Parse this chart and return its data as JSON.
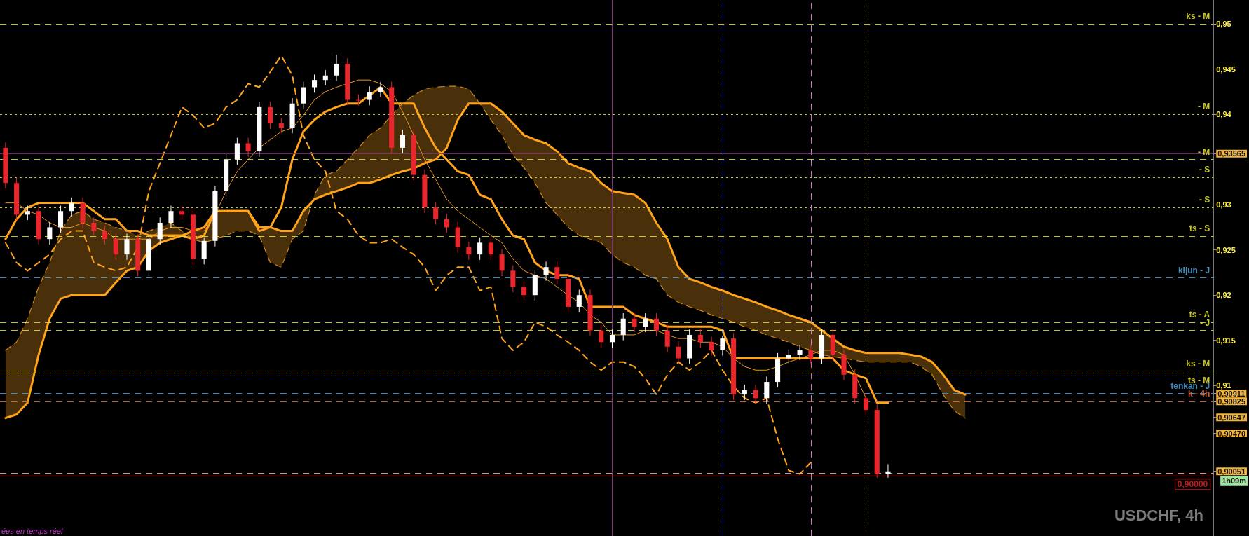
{
  "chart_data": {
    "type": "candlestick",
    "title": "USDCHF, 4h",
    "annotations": [
      "ées en temps réel",
      "1h09m"
    ],
    "categories": [
      null,
      null,
      null,
      null,
      null,
      null,
      null,
      null,
      null,
      null,
      null,
      null,
      null,
      null,
      null,
      null,
      null,
      null,
      null,
      null,
      null,
      null,
      null,
      null,
      null,
      null,
      null,
      null,
      null,
      null,
      null,
      null,
      null,
      null,
      null,
      null,
      null,
      null,
      null,
      null,
      null,
      null,
      null,
      null,
      null,
      null,
      null,
      null,
      null,
      null,
      null,
      null,
      null,
      null,
      null,
      null,
      null,
      null,
      null,
      null,
      null,
      null,
      null,
      null,
      null,
      null,
      null,
      null,
      null,
      null,
      null,
      null,
      null,
      null,
      null,
      null,
      null,
      null,
      null,
      null,
      null,
      null,
      null,
      null,
      null,
      null,
      null,
      null,
      null,
      null,
      null,
      null,
      null,
      null,
      null,
      null,
      null,
      null,
      null,
      null,
      null,
      null,
      null,
      null,
      null,
      null,
      null,
      null,
      null,
      null
    ],
    "ylim": [
      0.89335,
      0.95265
    ],
    "yticks": [
      {
        "value": 0.95,
        "label": "0,95"
      },
      {
        "value": 0.945,
        "label": "0,945"
      },
      {
        "value": 0.94,
        "label": "0,94"
      },
      {
        "value": 0.93565,
        "label": "0,93565"
      },
      {
        "value": 0.93,
        "label": "0,93"
      },
      {
        "value": 0.925,
        "label": "0,925"
      },
      {
        "value": 0.92,
        "label": "0,92"
      },
      {
        "value": 0.915,
        "label": "0,915"
      },
      {
        "value": 0.91,
        "label": "0,91"
      },
      {
        "value": 0.90911,
        "label": "0,90911"
      },
      {
        "value": 0.90825,
        "label": "0,90825"
      },
      {
        "value": 0.90647,
        "label": "0,90647"
      },
      {
        "value": 0.9047,
        "label": "0,90470"
      },
      {
        "value": 0.90051,
        "label": "0,90051"
      }
    ],
    "tick_labels": "y",
    "series": [
      {
        "ohlc": [
          [
            0.9363,
            0.9369,
            0.9318,
            0.9324
          ],
          [
            0.9324,
            0.933,
            0.9283,
            0.9289
          ],
          [
            0.9289,
            0.9299,
            0.9283,
            0.9293
          ],
          [
            0.9293,
            0.9299,
            0.9256,
            0.9262
          ],
          [
            0.9262,
            0.9281,
            0.9256,
            0.9275
          ],
          [
            0.9275,
            0.9299,
            0.9269,
            0.9293
          ],
          [
            0.9293,
            0.9308,
            0.9287,
            0.9302
          ],
          [
            0.9302,
            0.9308,
            0.9274,
            0.928
          ],
          [
            0.928,
            0.9286,
            0.9265,
            0.9271
          ],
          [
            0.9271,
            0.9277,
            0.9256,
            0.9262
          ],
          [
            0.9262,
            0.9268,
            0.9239,
            0.9245
          ],
          [
            0.9245,
            0.9268,
            0.9239,
            0.9262
          ],
          [
            0.9262,
            0.9268,
            0.9221,
            0.9227
          ],
          [
            0.9227,
            0.9268,
            0.9221,
            0.9262
          ],
          [
            0.9262,
            0.9286,
            0.9256,
            0.928
          ],
          [
            0.928,
            0.9299,
            0.9274,
            0.9293
          ],
          [
            0.9293,
            0.9299,
            0.9283,
            0.9289
          ],
          [
            0.9289,
            0.9295,
            0.9234,
            0.924
          ],
          [
            0.924,
            0.9264,
            0.9234,
            0.926
          ],
          [
            0.926,
            0.9321,
            0.9254,
            0.9315
          ],
          [
            0.9315,
            0.9356,
            0.9309,
            0.935
          ],
          [
            0.935,
            0.9374,
            0.9344,
            0.9368
          ],
          [
            0.9368,
            0.9374,
            0.9353,
            0.9359
          ],
          [
            0.9359,
            0.9414,
            0.9353,
            0.9408
          ],
          [
            0.9408,
            0.9414,
            0.9384,
            0.939
          ],
          [
            0.939,
            0.9396,
            0.9379,
            0.9385
          ],
          [
            0.9385,
            0.9418,
            0.9379,
            0.9412
          ],
          [
            0.9412,
            0.9436,
            0.9406,
            0.943
          ],
          [
            0.943,
            0.9444,
            0.9424,
            0.9438
          ],
          [
            0.9438,
            0.9449,
            0.9432,
            0.9443
          ],
          [
            0.9443,
            0.9466,
            0.9437,
            0.9456
          ],
          [
            0.9456,
            0.9462,
            0.941,
            0.9416
          ],
          [
            0.9416,
            0.9422,
            0.941,
            0.9416
          ],
          [
            0.9416,
            0.9431,
            0.941,
            0.9425
          ],
          [
            0.9425,
            0.9436,
            0.9419,
            0.943
          ],
          [
            0.943,
            0.9436,
            0.9357,
            0.9363
          ],
          [
            0.9363,
            0.9383,
            0.9357,
            0.9377
          ],
          [
            0.9377,
            0.9383,
            0.9327,
            0.9333
          ],
          [
            0.9333,
            0.9339,
            0.9291,
            0.9297
          ],
          [
            0.9297,
            0.9303,
            0.9278,
            0.9284
          ],
          [
            0.9284,
            0.929,
            0.9269,
            0.9275
          ],
          [
            0.9275,
            0.9281,
            0.9247,
            0.9253
          ],
          [
            0.9253,
            0.9259,
            0.9239,
            0.9245
          ],
          [
            0.9245,
            0.9264,
            0.9239,
            0.9258
          ],
          [
            0.9258,
            0.9264,
            0.9239,
            0.9245
          ],
          [
            0.9245,
            0.9251,
            0.9221,
            0.9227
          ],
          [
            0.9227,
            0.9233,
            0.9203,
            0.9209
          ],
          [
            0.9209,
            0.9215,
            0.9194,
            0.92
          ],
          [
            0.92,
            0.9228,
            0.9194,
            0.9222
          ],
          [
            0.9222,
            0.9237,
            0.9216,
            0.9231
          ],
          [
            0.9231,
            0.9237,
            0.9212,
            0.9218
          ],
          [
            0.9218,
            0.9224,
            0.9181,
            0.9187
          ],
          [
            0.9187,
            0.9206,
            0.9181,
            0.92
          ],
          [
            0.92,
            0.9206,
            0.9155,
            0.9161
          ],
          [
            0.9161,
            0.9167,
            0.9142,
            0.9148
          ],
          [
            0.9148,
            0.9162,
            0.9142,
            0.9156
          ],
          [
            0.9156,
            0.918,
            0.915,
            0.9174
          ],
          [
            0.9174,
            0.918,
            0.9159,
            0.9165
          ],
          [
            0.9165,
            0.918,
            0.9159,
            0.9174
          ],
          [
            0.9174,
            0.918,
            0.9155,
            0.9161
          ],
          [
            0.9161,
            0.9167,
            0.9137,
            0.9143
          ],
          [
            0.9143,
            0.9149,
            0.9124,
            0.913
          ],
          [
            0.913,
            0.9162,
            0.9124,
            0.9156
          ],
          [
            0.9156,
            0.9162,
            0.9142,
            0.9148
          ],
          [
            0.9148,
            0.9154,
            0.9133,
            0.9139
          ],
          [
            0.9139,
            0.9155,
            0.9133,
            0.9152
          ],
          [
            0.9152,
            0.9158,
            0.9084,
            0.909
          ],
          [
            0.909,
            0.9101,
            0.9084,
            0.9095
          ],
          [
            0.9095,
            0.9101,
            0.908,
            0.9086
          ],
          [
            0.9086,
            0.911,
            0.908,
            0.9104
          ],
          [
            0.9104,
            0.9136,
            0.9098,
            0.913
          ],
          [
            0.913,
            0.914,
            0.9124,
            0.9134
          ],
          [
            0.9134,
            0.9145,
            0.9128,
            0.9139
          ],
          [
            0.9139,
            0.9145,
            0.9124,
            0.913
          ],
          [
            0.913,
            0.9162,
            0.9124,
            0.9156
          ],
          [
            0.9156,
            0.9162,
            0.9128,
            0.9134
          ],
          [
            0.9134,
            0.914,
            0.9106,
            0.9112
          ],
          [
            0.9112,
            0.9118,
            0.908,
            0.9086
          ],
          [
            0.9086,
            0.9092,
            0.9067,
            0.9073
          ],
          [
            0.9073,
            0.9079,
            0.8998,
            0.9002
          ],
          [
            0.9002,
            0.9013,
            0.8998,
            0.9005
          ],
          null,
          null,
          null,
          null,
          null,
          null,
          null,
          null,
          null,
          null,
          null,
          null,
          null,
          null,
          null,
          null,
          null,
          null,
          null,
          null,
          null,
          null,
          null,
          null,
          null,
          null,
          null,
          null,
          null
        ],
        "colors": [
          "#e8262b",
          "#e8262b",
          "#ffffff",
          "#e8262b",
          "#ffffff",
          "#ffffff",
          "#ffffff",
          "#e8262b",
          "#e8262b",
          "#e8262b",
          "#e8262b",
          "#ffffff",
          "#e8262b",
          "#ffffff",
          "#ffffff",
          "#ffffff",
          "#e8262b",
          "#e8262b",
          "#ffffff",
          "#ffffff",
          "#ffffff",
          "#ffffff",
          "#e8262b",
          "#ffffff",
          "#e8262b",
          "#e8262b",
          "#ffffff",
          "#ffffff",
          "#ffffff",
          "#ffffff",
          "#ffffff",
          "#e8262b",
          "#e8262b",
          "#ffffff",
          "#ffffff",
          "#e8262b",
          "#ffffff",
          "#e8262b",
          "#e8262b",
          "#e8262b",
          "#e8262b",
          "#e8262b",
          "#e8262b",
          "#ffffff",
          "#e8262b",
          "#e8262b",
          "#e8262b",
          "#e8262b",
          "#ffffff",
          "#ffffff",
          "#e8262b",
          "#e8262b",
          "#ffffff",
          "#e8262b",
          "#e8262b",
          "#ffffff",
          "#ffffff",
          "#e8262b",
          "#ffffff",
          "#e8262b",
          "#e8262b",
          "#e8262b",
          "#ffffff",
          "#e8262b",
          "#e8262b",
          "#ffffff",
          "#e8262b",
          "#ffffff",
          "#e8262b",
          "#ffffff",
          "#ffffff",
          "#ffffff",
          "#ffffff",
          "#e8262b",
          "#ffffff",
          "#e8262b",
          "#e8262b",
          "#e8262b",
          "#e8262b",
          "#e8262b",
          "#ffffff",
          null,
          null,
          null,
          null,
          null,
          null,
          null,
          null,
          null,
          null,
          null,
          null,
          null,
          null,
          null,
          null,
          null,
          null,
          null,
          null,
          null,
          null,
          null,
          null,
          null,
          null,
          null,
          null,
          null
        ]
      },
      {
        "type": "line",
        "color": "#ffa31a",
        "line_style": "solid",
        "values": [
          0.9262,
          0.9284,
          0.9297,
          0.9302,
          0.9302,
          0.9302,
          0.9302,
          0.9302,
          0.9293,
          0.9284,
          0.9284,
          0.9271,
          0.9271,
          0.9266,
          0.9266,
          0.9266,
          0.9266,
          0.9262,
          0.9266,
          0.9293,
          0.9293,
          0.9293,
          0.9293,
          0.9271,
          0.9275,
          0.9297,
          0.935,
          0.9381,
          0.9394,
          0.9403,
          0.9408,
          0.9412,
          0.9412,
          0.9421,
          0.943,
          0.9412,
          0.9412,
          0.9412,
          0.9385,
          0.9363,
          0.935,
          0.9337,
          0.9333,
          0.9311,
          0.9306,
          0.9284,
          0.9266,
          0.9262,
          0.9236,
          0.9227,
          0.9222,
          0.9222,
          0.9218,
          0.9187,
          0.9187,
          0.9187,
          0.9187,
          0.9178,
          0.9174,
          0.917,
          0.9165,
          0.9165,
          0.9165,
          0.9165,
          0.9165,
          0.9161,
          0.913,
          0.913,
          0.913,
          0.913,
          0.913,
          0.913,
          0.913,
          0.913,
          0.913,
          0.913,
          0.9117,
          0.9112,
          0.9108,
          0.9081,
          0.9081,
          null,
          null,
          null,
          null,
          null,
          null,
          null,
          null,
          null,
          null,
          null,
          null,
          null,
          null,
          null,
          null,
          null,
          null,
          null,
          null,
          null,
          null,
          null,
          null,
          null,
          null,
          null,
          null,
          null
        ]
      },
      {
        "type": "line",
        "color": "#e8961e",
        "line_style": "solid",
        "values": [
          0.9302,
          0.9302,
          0.9293,
          0.9289,
          0.928,
          0.9275,
          0.9275,
          0.928,
          0.9275,
          0.9271,
          0.9262,
          0.9262,
          0.9262,
          0.9262,
          0.9271,
          0.9275,
          0.9275,
          0.9271,
          0.9271,
          0.9289,
          0.9315,
          0.9337,
          0.935,
          0.9363,
          0.9372,
          0.9381,
          0.9385,
          0.9399,
          0.9416,
          0.9425,
          0.943,
          0.9434,
          0.9438,
          0.9438,
          0.9434,
          0.9425,
          0.9403,
          0.9377,
          0.935,
          0.9328,
          0.9306,
          0.9293,
          0.9284,
          0.9275,
          0.9266,
          0.9258,
          0.924,
          0.9227,
          0.9222,
          0.9218,
          0.9209,
          0.92,
          0.9192,
          0.9178,
          0.917,
          0.9156,
          0.9156,
          0.9156,
          0.9161,
          0.9161,
          0.9156,
          0.9152,
          0.9152,
          0.9148,
          0.9148,
          0.9143,
          0.913,
          0.9121,
          0.9117,
          0.9117,
          0.9121,
          0.9126,
          0.913,
          0.9134,
          0.9139,
          0.9139,
          0.9134,
          0.9112,
          0.9086,
          null,
          null,
          null,
          null,
          null,
          null,
          null,
          null,
          null,
          null,
          null,
          null,
          null,
          null,
          null,
          null,
          null,
          null,
          null,
          null,
          null,
          null,
          null,
          null,
          null,
          null,
          null,
          null,
          null,
          null,
          null
        ]
      },
      {
        "type": "line",
        "color": "#d08a1c",
        "line_style": "dashed",
        "values": [
          0.9139,
          0.9148,
          0.9174,
          0.9209,
          0.9236,
          0.9271,
          0.9289,
          0.9293,
          0.9284,
          0.928,
          0.9275,
          0.9271,
          0.9266,
          0.9271,
          0.9275,
          0.928,
          0.9271,
          0.9262,
          0.9258,
          0.9262,
          0.9266,
          0.9271,
          0.9271,
          0.9266,
          0.9236,
          0.9231,
          0.9262,
          0.9271,
          0.9311,
          0.9333,
          0.9337,
          0.935,
          0.9363,
          0.9377,
          0.9385,
          0.9399,
          0.9412,
          0.9421,
          0.9428,
          0.943,
          0.9431,
          0.9431,
          0.9428,
          0.9412,
          0.9394,
          0.9377,
          0.9355,
          0.9341,
          0.9324,
          0.9302,
          0.9289,
          0.9275,
          0.9266,
          0.9262,
          0.9258,
          0.9245,
          0.9236,
          0.9231,
          0.9222,
          0.9218,
          0.92,
          0.9192,
          0.9187,
          0.9183,
          0.9178,
          0.9174,
          0.917,
          0.9165,
          0.9161,
          0.9156,
          0.9152,
          0.9148,
          0.9143,
          0.9139,
          0.9134,
          0.9132,
          0.913,
          0.9128,
          0.9126,
          0.9126,
          0.9126,
          0.9126,
          0.9126,
          0.9121,
          0.9112,
          0.909,
          0.9072,
          0.9064,
          null,
          null,
          null,
          null,
          null,
          null,
          null,
          null,
          null,
          null,
          null,
          null,
          null,
          null,
          null,
          null,
          null,
          null,
          null,
          null,
          null,
          null
        ],
        "lower": [
          0.9139,
          0.9148,
          0.9174,
          0.9209,
          0.9236,
          0.9271,
          0.9289,
          0.9293,
          0.9284,
          0.928,
          0.9275,
          0.9271,
          0.9266,
          0.9271,
          0.9275,
          0.928,
          0.9271,
          0.9262,
          0.9258,
          0.9262,
          0.9266,
          0.9271,
          0.9271,
          0.9266,
          0.9236,
          0.9231,
          0.9262,
          0.9271,
          0.9311,
          0.9333,
          0.9337,
          0.935,
          0.9363,
          0.9377,
          0.9385,
          0.9399,
          0.9412,
          0.9421,
          0.9428,
          0.943,
          0.9431,
          0.9431,
          0.9428,
          0.9412,
          0.9394,
          0.9377,
          0.9355,
          0.9341,
          0.9324,
          0.9302,
          0.9289,
          0.9275,
          0.9266,
          0.9262,
          0.9258,
          0.9245,
          0.9236,
          0.9231,
          0.9222,
          0.9218,
          0.92,
          0.9192,
          0.9187,
          0.9183,
          0.9178,
          0.9174,
          0.917,
          0.9165,
          0.9161,
          0.9156,
          0.9152,
          0.9148,
          0.9143,
          0.9139,
          0.9134,
          0.9132,
          0.913,
          0.9128,
          0.9126,
          0.9126,
          0.9126,
          0.9126,
          0.9126,
          0.9121,
          0.9112,
          0.909,
          0.9072,
          0.9064,
          null,
          null,
          null,
          null,
          null,
          null,
          null,
          null,
          null,
          null,
          null,
          null,
          null,
          null,
          null,
          null,
          null,
          null,
          null,
          null,
          null,
          null
        ],
        "upper": [
          0.9064,
          0.9068,
          0.9081,
          0.9134,
          0.9174,
          0.9196,
          0.92,
          0.92,
          0.92,
          0.92,
          0.9214,
          0.9227,
          0.9231,
          0.9249,
          0.9258,
          0.9262,
          0.9266,
          0.9271,
          0.9275,
          0.9293,
          0.9293,
          0.9293,
          0.9293,
          0.9275,
          0.9275,
          0.9271,
          0.9271,
          0.9293,
          0.9306,
          0.9311,
          0.9315,
          0.9319,
          0.9324,
          0.9324,
          0.9328,
          0.9333,
          0.9337,
          0.934,
          0.9346,
          0.935,
          0.9363,
          0.9394,
          0.9412,
          0.9412,
          0.9412,
          0.9403,
          0.939,
          0.9377,
          0.9372,
          0.9368,
          0.9359,
          0.9346,
          0.9341,
          0.9337,
          0.9324,
          0.9315,
          0.9313,
          0.9311,
          0.9302,
          0.928,
          0.9262,
          0.9231,
          0.9218,
          0.9214,
          0.9209,
          0.9205,
          0.92,
          0.9196,
          0.9192,
          0.9187,
          0.9183,
          0.9178,
          0.9174,
          0.917,
          0.9161,
          0.9152,
          0.9143,
          0.9139,
          0.9136,
          0.9136,
          0.9136,
          0.9136,
          0.9134,
          0.9132,
          0.9126,
          0.9112,
          0.9095,
          0.909,
          null,
          null,
          null,
          null,
          null,
          null,
          null,
          null,
          null,
          null,
          null,
          null,
          null,
          null,
          null,
          null,
          null,
          null,
          null,
          null,
          null,
          null
        ]
      },
      {
        "type": "line",
        "color": "#ffa31a",
        "line_style": "solid",
        "values": [
          0.9064,
          0.9068,
          0.9081,
          0.9134,
          0.9174,
          0.9196,
          0.92,
          0.92,
          0.92,
          0.92,
          0.9214,
          0.9227,
          0.9231,
          0.9249,
          0.9258,
          0.9262,
          0.9266,
          0.9271,
          0.9275,
          0.9293,
          0.9293,
          0.9293,
          0.9293,
          0.9275,
          0.9275,
          0.9271,
          0.9271,
          0.9293,
          0.9306,
          0.9311,
          0.9315,
          0.9319,
          0.9324,
          0.9324,
          0.9328,
          0.9333,
          0.9337,
          0.934,
          0.9346,
          0.935,
          0.9363,
          0.9394,
          0.9412,
          0.9412,
          0.9412,
          0.9403,
          0.939,
          0.9377,
          0.9372,
          0.9368,
          0.9359,
          0.9346,
          0.9341,
          0.9337,
          0.9324,
          0.9315,
          0.9313,
          0.9311,
          0.9302,
          0.928,
          0.9262,
          0.9231,
          0.9218,
          0.9214,
          0.9209,
          0.9205,
          0.92,
          0.9196,
          0.9192,
          0.9187,
          0.9183,
          0.9178,
          0.9174,
          0.917,
          0.9161,
          0.9152,
          0.9143,
          0.9139,
          0.9136,
          0.9136,
          0.9136,
          0.9136,
          0.9134,
          0.9132,
          0.9126,
          0.9112,
          0.9095,
          0.909,
          null,
          null,
          null,
          null,
          null,
          null,
          null,
          null,
          null,
          null,
          null,
          null,
          null,
          null,
          null,
          null,
          null,
          null,
          null,
          null,
          null,
          null
        ]
      },
      {
        "type": "line",
        "color": "#ffa31a",
        "line_style": "dashed",
        "values": [
          0.9258,
          0.9236,
          0.9227,
          0.9236,
          0.9245,
          0.9262,
          0.9271,
          0.9271,
          0.9236,
          0.9231,
          0.9227,
          0.9231,
          0.9253,
          0.9315,
          0.9346,
          0.9377,
          0.9408,
          0.9399,
          0.9385,
          0.939,
          0.9408,
          0.9416,
          0.9434,
          0.943,
          0.9447,
          0.9465,
          0.9443,
          0.9377,
          0.935,
          0.9337,
          0.9293,
          0.9284,
          0.9266,
          0.9258,
          0.9258,
          0.9262,
          0.9253,
          0.9245,
          0.9231,
          0.9205,
          0.9222,
          0.9231,
          0.9231,
          0.9205,
          0.9209,
          0.9152,
          0.9139,
          0.9148,
          0.917,
          0.9165,
          0.9156,
          0.9148,
          0.9139,
          0.9126,
          0.9117,
          0.9126,
          0.9126,
          0.9121,
          0.9108,
          0.909,
          0.9112,
          0.9126,
          0.9117,
          0.9126,
          0.9139,
          0.9117,
          0.9099,
          0.9086,
          0.9081,
          0.9086,
          0.9041,
          0.9006,
          0.9002,
          0.9015,
          null,
          null,
          null,
          null,
          null,
          null,
          null,
          null,
          null,
          null,
          null,
          null,
          null,
          null,
          null,
          null,
          null,
          null,
          null,
          null,
          null,
          null,
          null,
          null,
          null,
          null,
          null,
          null,
          null,
          null,
          null,
          null,
          null,
          null,
          null,
          null
        ]
      }
    ],
    "ref_lines": [
      {
        "axis": "y",
        "value": 0.95,
        "label": "ks - M",
        "color": "#e6e62e",
        "line_style": "dashed"
      },
      {
        "axis": "y",
        "value": 0.94,
        "label": "- M",
        "color": "#e6e62e",
        "line_style": "dotted"
      },
      {
        "axis": "y",
        "value": 0.93565,
        "color": "#8a2b8a",
        "line_style": "solid"
      },
      {
        "axis": "y",
        "value": 0.935,
        "label": "- M",
        "color": "#e6e62e",
        "line_style": "dashed"
      },
      {
        "axis": "y",
        "value": 0.933,
        "label": "- S",
        "color": "#e6e62e",
        "line_style": "dotted"
      },
      {
        "axis": "y",
        "value": 0.9297,
        "label": "- S",
        "color": "#e6e62e",
        "line_style": "dotted"
      },
      {
        "axis": "y",
        "value": 0.9265,
        "label": "ts - S",
        "color": "#e6e62e",
        "line_style": "dashed"
      },
      {
        "axis": "y",
        "value": 0.9219,
        "label": "kijun - J",
        "color": "#4aa3df",
        "line_style": "dashed"
      },
      {
        "axis": "y",
        "value": 0.917,
        "label": "ts - A",
        "color": "#e6e62e",
        "line_style": "dashed"
      },
      {
        "axis": "y",
        "value": 0.9161,
        "label": "- J",
        "color": "#e6e62e",
        "line_style": "dashed"
      },
      {
        "axis": "y",
        "value": 0.9116,
        "label": "ks - M",
        "color": "#e6e62e",
        "line_style": "dashed"
      },
      {
        "axis": "y",
        "value": 0.9114,
        "label": "ts - M",
        "color": "#e6e62e",
        "line_style": "dashed"
      },
      {
        "axis": "y",
        "value": 0.90911,
        "label": "tenkan - J",
        "color": "#4aa3df",
        "line_style": "dashed"
      },
      {
        "axis": "y",
        "value": 0.90825,
        "label": "k - 4h",
        "color": "#e8704a",
        "line_style": "dashed"
      },
      {
        "axis": "y",
        "value": 0.9003,
        "color": "#f0b0b0",
        "line_style": "dashed"
      },
      {
        "axis": "y",
        "value": 0.9,
        "label": "0,90000",
        "color": "#e02020",
        "line_style": "solid"
      }
    ]
  }
}
